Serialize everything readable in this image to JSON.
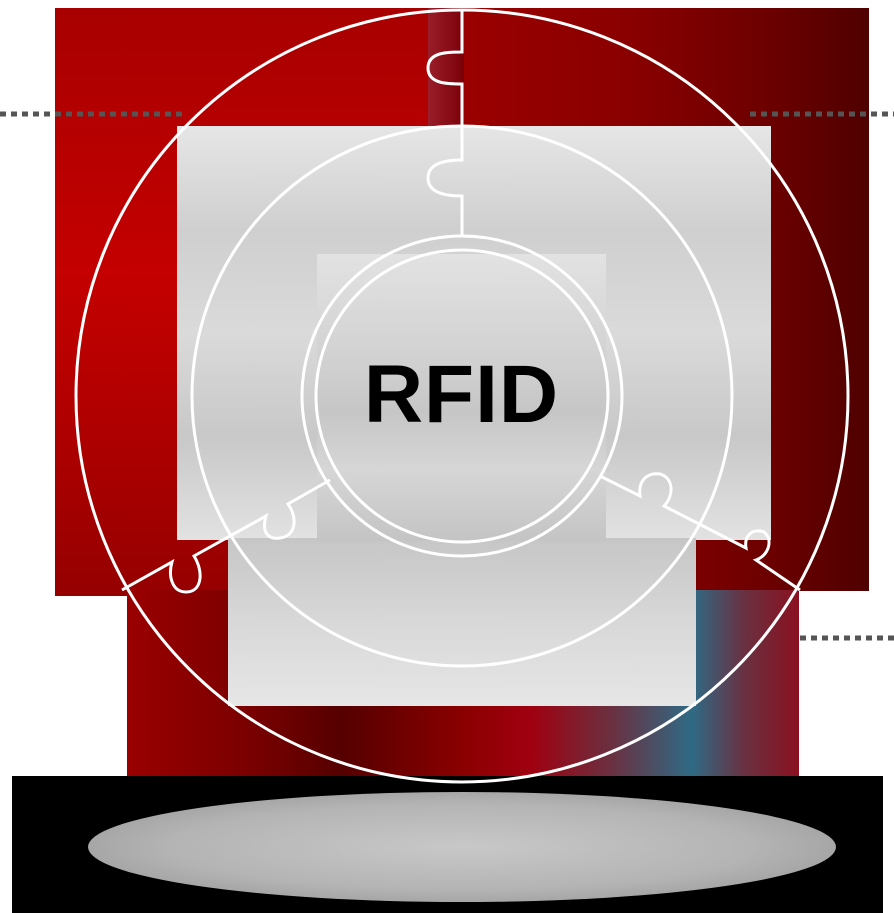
{
  "diagram": {
    "center_label": "RFID",
    "rings": 3,
    "segments": 3
  },
  "colors": {
    "red_primary": "#b00000",
    "red_dark": "#4f0000",
    "teal_accent": "#2f6a85",
    "gray_light": "#e2e2e2",
    "gray_mid": "#c8c8c8",
    "outline": "#ffffff",
    "connector_dots": "#555555",
    "base": "#000000"
  }
}
